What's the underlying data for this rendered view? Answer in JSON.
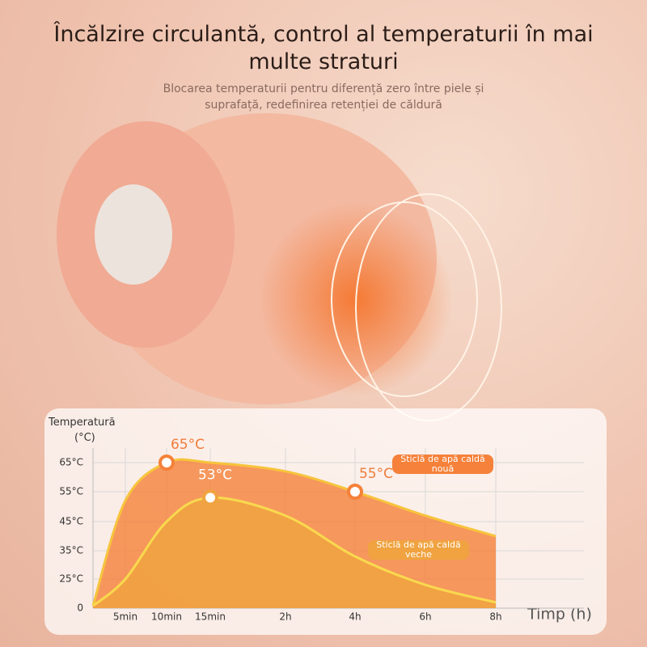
{
  "title": "Încălzire circulantă, control al temperaturii în mai multe straturi",
  "subtitle": "Blocarea temperaturii pentru diferență zero între piele și suprafață, redefinirea retenției de căldură",
  "chart_data": {
    "type": "area",
    "y_label": [
      "Temperatură",
      "(°C)"
    ],
    "x_label": "Timp (h)",
    "categories": [
      null,
      "5min",
      "10min",
      "15min",
      "2h",
      "4h",
      "6h",
      "8h"
    ],
    "ylim": [
      0,
      70
    ],
    "yticks": [
      0,
      {
        "value": 25,
        "label": "25°C"
      },
      {
        "value": 35,
        "label": "35°C"
      },
      {
        "value": 45,
        "label": "45°C"
      },
      {
        "value": 55,
        "label": "55°C"
      },
      {
        "value": 65,
        "label": "65°C"
      }
    ],
    "grid": true,
    "series": [
      {
        "name": "Sticlă de apă caldă nouă",
        "color": "#f7c43c",
        "fill": "#f5813a",
        "values": [
          2,
          52,
          65,
          65,
          62,
          55,
          47,
          40
        ],
        "value_labels": [
          null,
          null,
          "65°C",
          null,
          null,
          "55°C",
          null,
          null
        ]
      },
      {
        "name": "Sticlă de apă caldă veche",
        "color": "#f9d94e",
        "fill": "#f0a340",
        "values": [
          2,
          25,
          45,
          53,
          47,
          33,
          20,
          5
        ],
        "value_labels": [
          null,
          null,
          null,
          "53°C",
          null,
          null,
          null,
          null
        ]
      }
    ]
  }
}
